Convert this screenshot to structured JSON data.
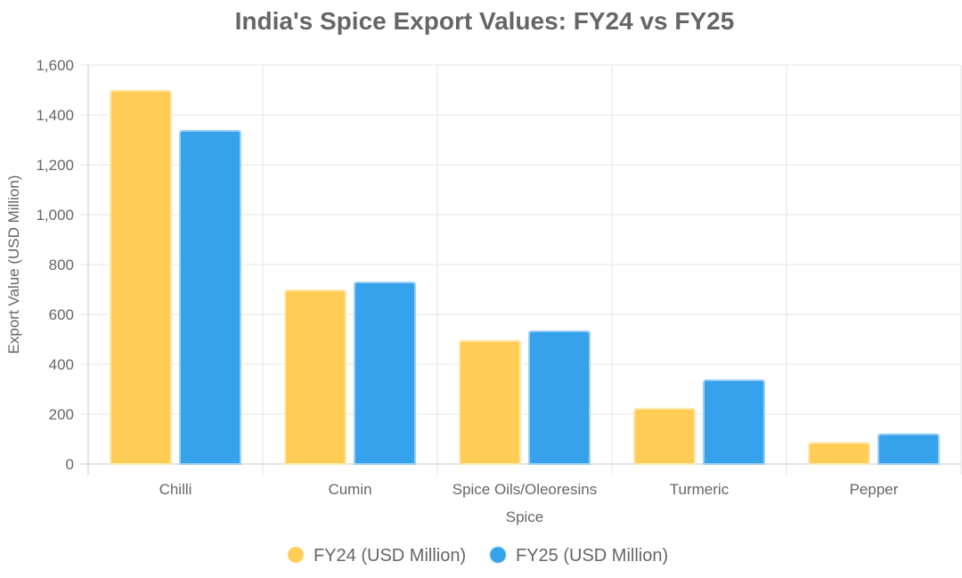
{
  "chart_data": {
    "type": "bar",
    "title": "India's Spice Export Values: FY24 vs FY25",
    "xlabel": "Spice",
    "ylabel": "Export Value (USD Million)",
    "categories": [
      "Chilli",
      "Cumin",
      "Spice Oils/Oleoresins",
      "Turmeric",
      "Pepper"
    ],
    "series": [
      {
        "name": "FY24 (USD Million)",
        "values": [
          1497,
          697,
          494,
          222,
          85
        ],
        "color": "#ffcd56",
        "border_color": "#fde9b0"
      },
      {
        "name": "FY25 (USD Million)",
        "values": [
          1336,
          728,
          532,
          336,
          119
        ],
        "color": "#36a2eb",
        "border_color": "#9ad0f5"
      }
    ],
    "ylim": [
      0,
      1600
    ],
    "yticks": [
      0,
      200,
      400,
      600,
      800,
      1000,
      1200,
      1400,
      1600
    ],
    "ytick_labels": [
      "0",
      "200",
      "400",
      "600",
      "800",
      "1,000",
      "1,200",
      "1,400",
      "1,600"
    ],
    "grid": true,
    "legend_position": "bottom"
  }
}
